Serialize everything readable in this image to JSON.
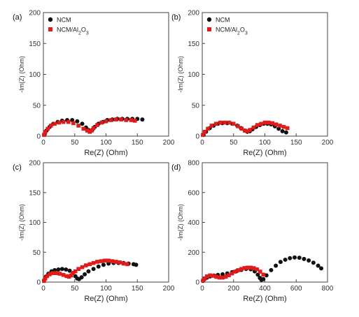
{
  "colors": {
    "ncm": "#111111",
    "coated": "#e01b1b",
    "axis": "#444444"
  },
  "chart_data": [
    {
      "type": "scatter",
      "panel_label": "(a)",
      "xlabel": "Re(Z) (Ohm)",
      "ylabel": "-Im(Z) (Ohm)",
      "xlim": [
        0,
        200
      ],
      "ylim": [
        0,
        200
      ],
      "xticks": [
        0,
        50,
        100,
        150,
        200
      ],
      "yticks": [
        0,
        50,
        100,
        150,
        200
      ],
      "legend": {
        "position": "top-left",
        "entries": [
          "NCM",
          "NCM/Al2O3"
        ]
      },
      "series": [
        {
          "name": "NCM",
          "color": "#111111",
          "x": [
            2,
            5,
            10,
            16,
            23,
            30,
            38,
            46,
            54,
            62,
            68,
            72,
            75,
            78,
            82,
            88,
            95,
            102,
            110,
            118,
            126,
            134,
            142,
            150,
            158
          ],
          "y": [
            3,
            9,
            15,
            20,
            23,
            25,
            26,
            26,
            24,
            20,
            14,
            10,
            8,
            10,
            15,
            20,
            23,
            26,
            27,
            28,
            28,
            28,
            28,
            28,
            27
          ]
        },
        {
          "name": "NCM/Al2O3",
          "color": "#e01b1b",
          "x": [
            1,
            3,
            7,
            12,
            18,
            25,
            32,
            40,
            48,
            56,
            64,
            70,
            74,
            77,
            80,
            86,
            93,
            100,
            108,
            116,
            124,
            132,
            140,
            146
          ],
          "y": [
            2,
            7,
            12,
            17,
            20,
            22,
            23,
            23,
            21,
            17,
            12,
            9,
            7,
            9,
            13,
            18,
            22,
            24,
            26,
            27,
            27,
            26,
            26,
            25
          ]
        }
      ]
    },
    {
      "type": "scatter",
      "panel_label": "(b)",
      "xlabel": "Re(Z) (Ohm)",
      "ylabel": "-Im(Z) (Ohm)",
      "xlim": [
        0,
        200
      ],
      "ylim": [
        0,
        200
      ],
      "xticks": [
        0,
        50,
        100,
        150,
        200
      ],
      "yticks": [
        0,
        50,
        100,
        150,
        200
      ],
      "legend": {
        "position": "top-left",
        "entries": [
          "NCM",
          "NCM/Al2O3"
        ]
      },
      "series": [
        {
          "name": "NCM",
          "color": "#111111",
          "x": [
            2,
            6,
            12,
            18,
            25,
            32,
            40,
            48,
            56,
            62,
            68,
            72,
            76,
            80,
            86,
            92,
            98,
            104,
            110,
            116,
            122,
            128,
            134
          ],
          "y": [
            2,
            7,
            13,
            17,
            20,
            21,
            21,
            20,
            17,
            13,
            9,
            7,
            8,
            11,
            15,
            18,
            20,
            20,
            19,
            16,
            12,
            8,
            6
          ]
        },
        {
          "name": "NCM/Al2O3",
          "color": "#e01b1b",
          "x": [
            1,
            4,
            9,
            15,
            22,
            29,
            36,
            43,
            50,
            57,
            63,
            68,
            72,
            76,
            82,
            88,
            94,
            100,
            106,
            112,
            118,
            124,
            130,
            136
          ],
          "y": [
            2,
            7,
            12,
            17,
            20,
            22,
            22,
            22,
            20,
            16,
            12,
            9,
            8,
            10,
            14,
            18,
            20,
            22,
            22,
            21,
            19,
            17,
            15,
            13
          ]
        }
      ]
    },
    {
      "type": "scatter",
      "panel_label": "(c)",
      "xlabel": "Re(Z) (Ohm)",
      "ylabel": "-Im(Z) (Ohm)",
      "xlim": [
        0,
        200
      ],
      "ylim": [
        0,
        200
      ],
      "xticks": [
        0,
        50,
        100,
        150,
        200
      ],
      "yticks": [
        0,
        50,
        100,
        150,
        200
      ],
      "series": [
        {
          "name": "NCM",
          "color": "#111111",
          "x": [
            1,
            4,
            8,
            13,
            18,
            24,
            30,
            36,
            42,
            47,
            51,
            54,
            57,
            61,
            66,
            72,
            80,
            88,
            96,
            104,
            112,
            120,
            128,
            136,
            144,
            148
          ],
          "y": [
            3,
            9,
            14,
            18,
            20,
            21,
            22,
            21,
            19,
            15,
            10,
            6,
            5,
            8,
            13,
            18,
            22,
            26,
            29,
            31,
            32,
            32,
            32,
            31,
            30,
            29
          ]
        },
        {
          "name": "NCM/Al2O3",
          "color": "#e01b1b",
          "x": [
            1,
            3,
            6,
            10,
            15,
            20,
            26,
            32,
            37,
            41,
            44,
            47,
            51,
            56,
            62,
            68,
            74,
            80,
            86,
            92,
            98,
            104,
            110,
            116,
            122,
            128,
            134
          ],
          "y": [
            2,
            6,
            10,
            13,
            15,
            15,
            14,
            12,
            10,
            9,
            11,
            15,
            18,
            22,
            25,
            28,
            30,
            32,
            34,
            35,
            36,
            36,
            35,
            34,
            33,
            31,
            30
          ]
        }
      ]
    },
    {
      "type": "scatter",
      "panel_label": "(d)",
      "xlabel": "Re(Z) (Ohm)",
      "ylabel": "-Im(Z) (Ohm)",
      "xlim": [
        0,
        800
      ],
      "ylim": [
        0,
        800
      ],
      "xticks": [
        0,
        200,
        400,
        600,
        800
      ],
      "yticks": [
        0,
        200,
        400,
        600,
        800
      ],
      "series": [
        {
          "name": "NCM",
          "color": "#111111",
          "x": [
            5,
            15,
            30,
            50,
            75,
            100,
            130,
            160,
            190,
            220,
            250,
            280,
            310,
            335,
            355,
            368,
            378,
            390,
            410,
            440,
            470,
            500,
            530,
            560,
            590,
            620,
            650,
            680,
            710,
            740,
            760
          ],
          "y": [
            8,
            20,
            30,
            38,
            44,
            48,
            52,
            58,
            66,
            74,
            82,
            88,
            86,
            72,
            50,
            28,
            15,
            20,
            45,
            80,
            110,
            135,
            150,
            160,
            165,
            163,
            155,
            145,
            130,
            110,
            92
          ]
        },
        {
          "name": "NCM/Al2O3",
          "color": "#e01b1b",
          "x": [
            5,
            15,
            30,
            50,
            70,
            90,
            110,
            130,
            150,
            170,
            190,
            210,
            230,
            250,
            270,
            290,
            310,
            330,
            350,
            370,
            390
          ],
          "y": [
            10,
            25,
            38,
            45,
            42,
            35,
            30,
            30,
            36,
            46,
            58,
            70,
            80,
            88,
            94,
            97,
            97,
            93,
            85,
            70,
            50
          ]
        }
      ]
    }
  ]
}
